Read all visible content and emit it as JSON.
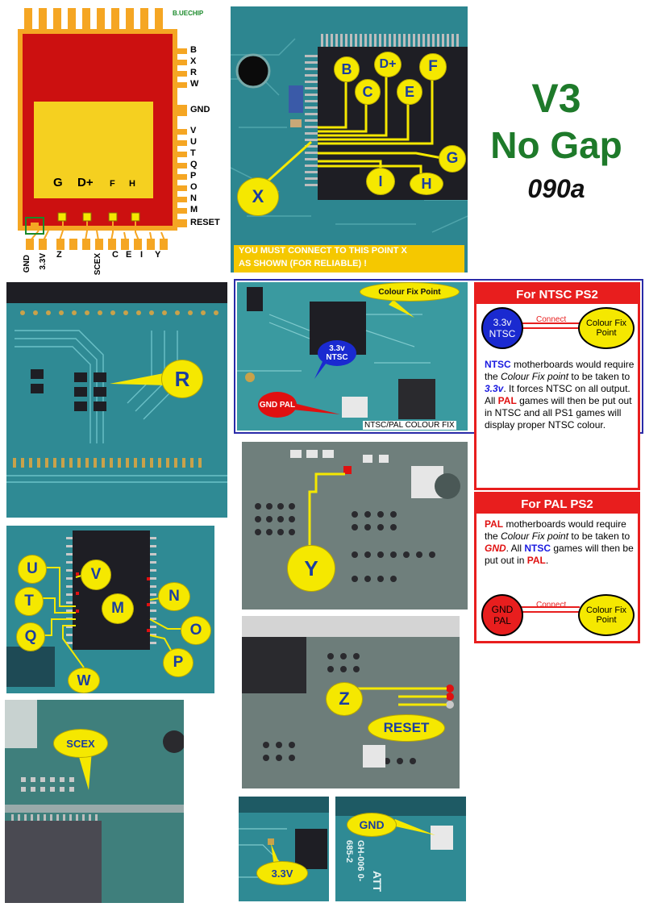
{
  "header": {
    "line1": "V3",
    "line2": "No Gap",
    "line3": "090a"
  },
  "chip": {
    "brand": "B.UECHIP",
    "right_pins": [
      "B",
      "X",
      "R",
      "W",
      "GND",
      "V",
      "U",
      "T",
      "Q",
      "P",
      "O",
      "N",
      "M",
      "RESET"
    ],
    "inner_labels": [
      "G",
      "D+",
      "F",
      "H"
    ],
    "bottom_pins": [
      "GND",
      "3.3V",
      "Z",
      "SCEX",
      "C",
      "E",
      "I",
      "Y"
    ]
  },
  "photo_x": {
    "labels": [
      "B",
      "C",
      "D+",
      "E",
      "F",
      "G",
      "I",
      "H",
      "X"
    ],
    "note_line1": "YOU MUST CONNECT TO THIS POINT X",
    "note_line2": "AS SHOWN (FOR RELIABLE) !"
  },
  "photo_r": {
    "label": "R"
  },
  "colour_fix": {
    "top_label": "Colour Fix Point",
    "ntsc_bubble": "3.3v NTSC",
    "pal_bubble": "GND PAL",
    "caption": "NTSC/PAL COLOUR FIX"
  },
  "ntsc_panel": {
    "title": "For NTSC PS2",
    "left_circle": "3.3v NTSC",
    "connect": "Connect",
    "right_circle": "Colour Fix Point",
    "t1": "NTSC",
    "t2": " motherboards would require the ",
    "t3": "Colour Fix point",
    "t4": " to be taken to ",
    "t5": "3.3v",
    "t6": ". It forces NTSC on all output. All ",
    "t7": "PAL",
    "t8": " games will then be put out in NTSC and all PS1 games will display proper NTSC colour."
  },
  "pal_panel": {
    "title": "For PAL PS2",
    "t1": "PAL",
    "t2": " motherboards would require the ",
    "t3": "Colour Fix point",
    "t4": " to be taken to ",
    "t5": "GND",
    "t6": ". All ",
    "t7": "NTSC",
    "t8": " games will then be put out in ",
    "t9": "PAL",
    "t10": ".",
    "left_circle": "GND PAL",
    "connect": "Connect",
    "right_circle": "Colour Fix Point"
  },
  "photo_y": {
    "label": "Y"
  },
  "photo_uvm": {
    "labels": [
      "U",
      "V",
      "T",
      "M",
      "N",
      "Q",
      "O",
      "P",
      "W"
    ]
  },
  "photo_z": {
    "label_z": "Z",
    "label_reset": "RESET"
  },
  "photo_scex": {
    "label": "SCEX"
  },
  "photo_33": {
    "label": "3.3V"
  },
  "photo_gnd": {
    "label": "GND",
    "chip_text": "GH-006 0-685-2",
    "att": "ATT"
  },
  "colors": {
    "pcb": "#2f8a8a",
    "pcb_dark": "#1f6f78",
    "accent_yellow": "#f5e800",
    "label_blue": "#1a3ea0",
    "title_green": "#1e7a2a",
    "panel_red": "#e81e1e",
    "chip_red": "#cc1010",
    "chip_orange": "#f5a623"
  }
}
